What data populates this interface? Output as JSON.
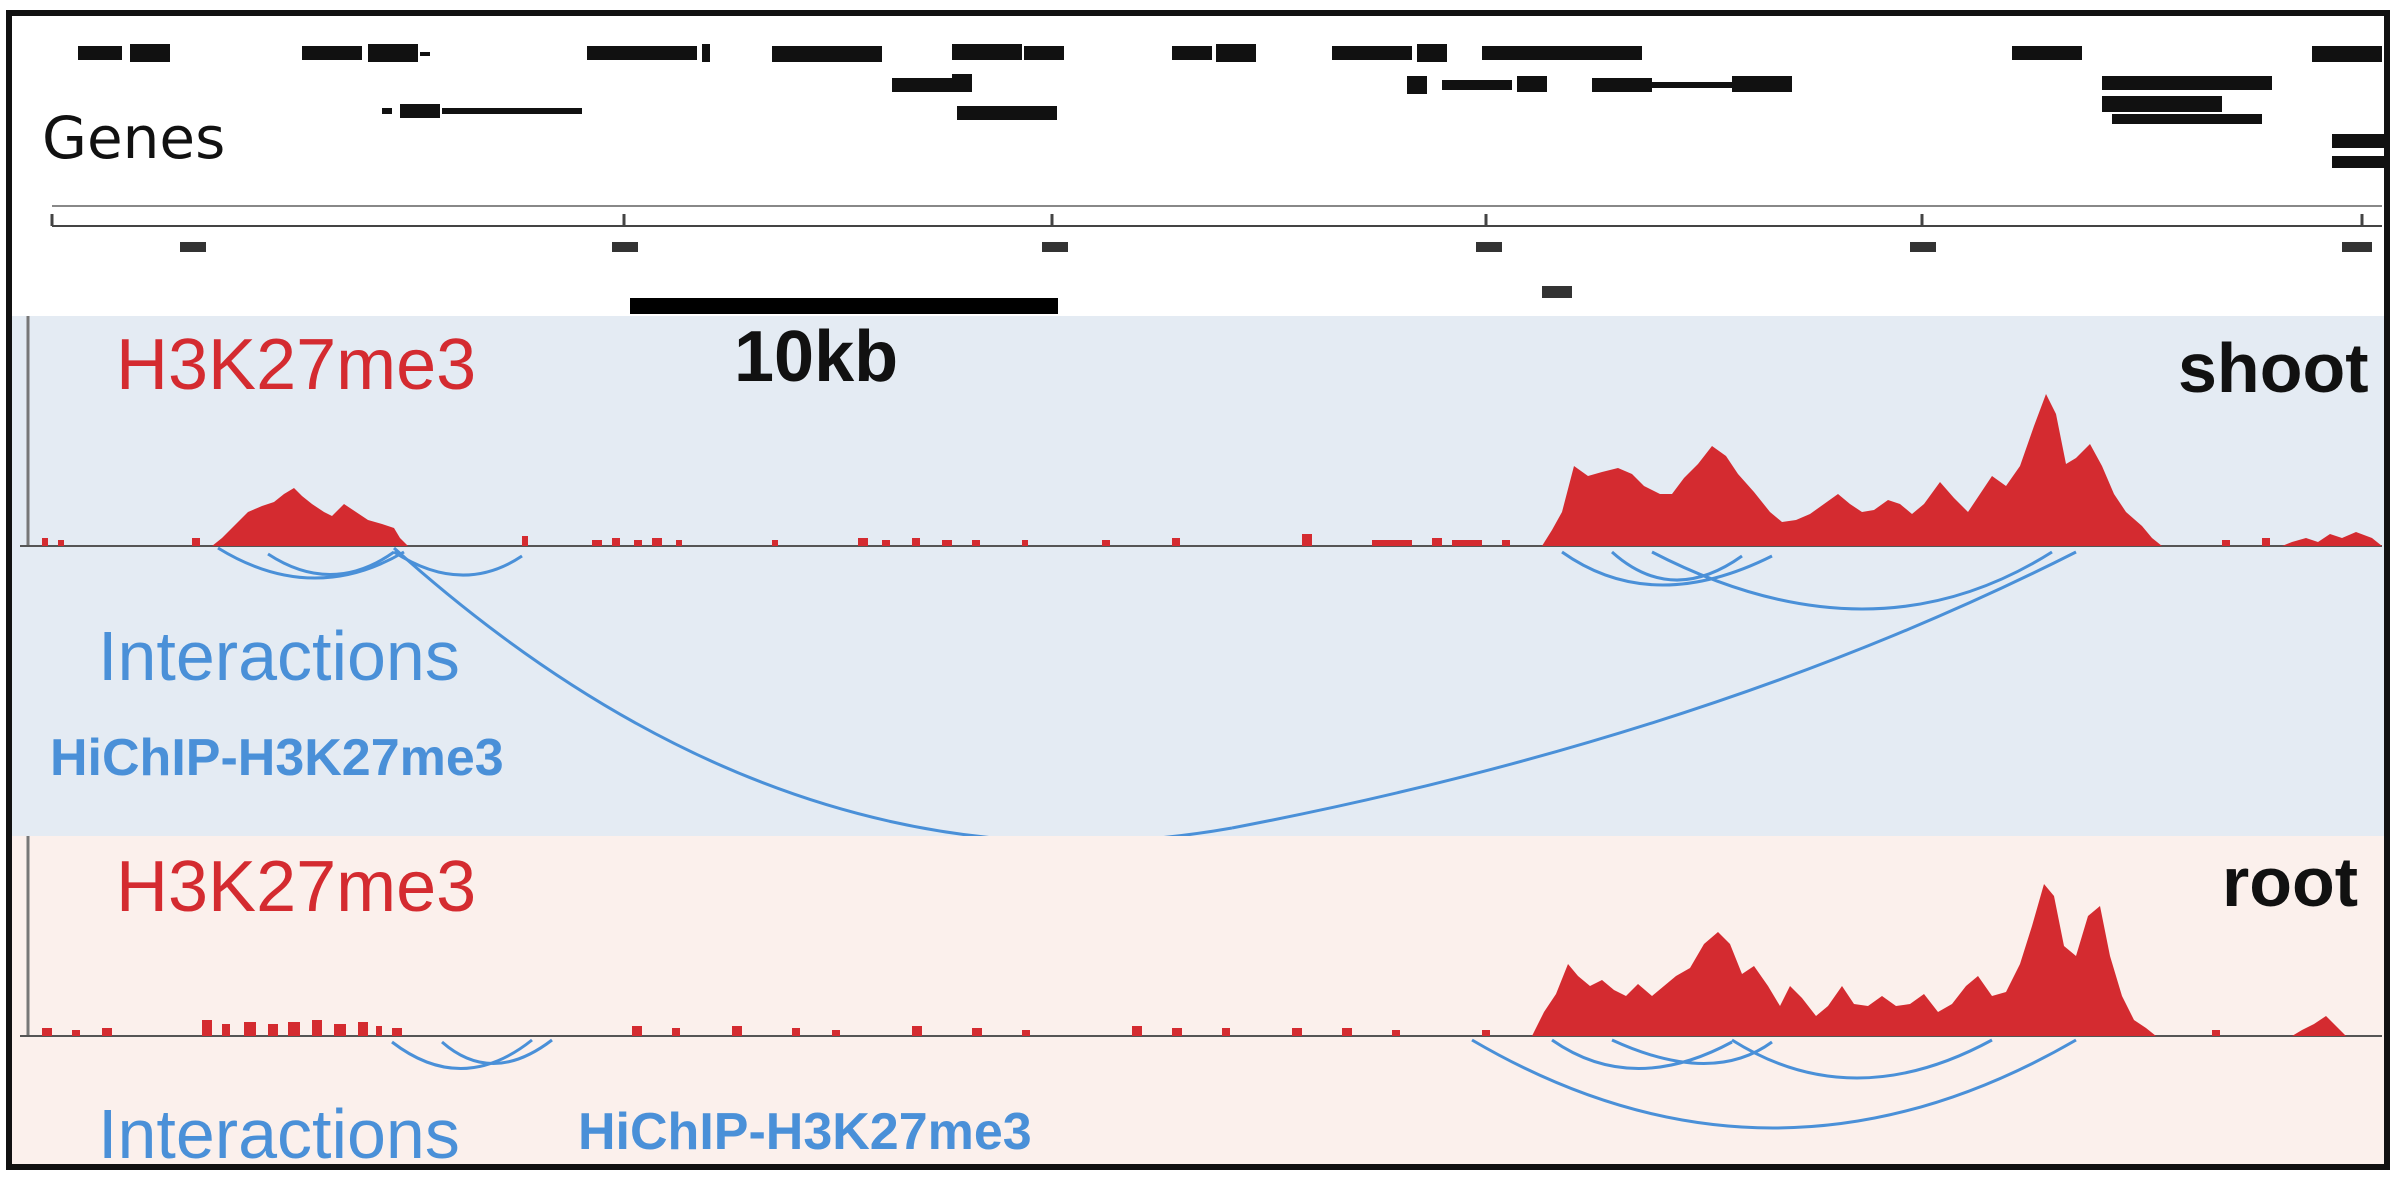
{
  "genes_track": {
    "label": "Genes"
  },
  "ruler": {
    "scale_label": "10kb"
  },
  "shoot": {
    "tissue": "shoot",
    "chip_label": "H3K27me3",
    "interactions_label": "Interactions",
    "hichip_label": "HiChIP-H3K27me3"
  },
  "root": {
    "tissue": "root",
    "chip_label": "H3K27me3",
    "interactions_label": "Interactions",
    "hichip_label": "HiChIP-H3K27me3"
  },
  "colors": {
    "signal": "#d42b30",
    "arc": "#4a90d8",
    "shoot_bg": "#e4ebf3",
    "root_bg": "#fbf0ec"
  }
}
